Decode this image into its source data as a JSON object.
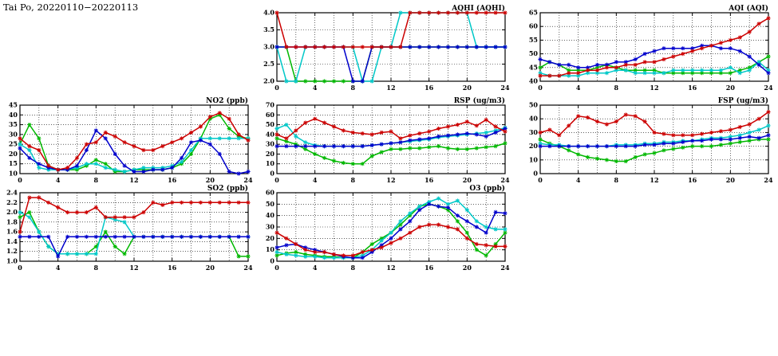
{
  "page": {
    "title": "Tai Po, 20220110−20220113"
  },
  "colors": {
    "red": "#cc0000",
    "blue": "#0000cc",
    "green": "#00b800",
    "cyan": "#00c8c8"
  },
  "chart_data": [
    {
      "id": "aqhi",
      "title": "AQHI (AQHI)",
      "type": "line",
      "xlim": [
        0,
        24
      ],
      "xticks": [
        0,
        4,
        8,
        12,
        16,
        20,
        24
      ],
      "xgrid": 2,
      "x0": 0,
      "dx": 1,
      "ylim": [
        2.0,
        4.0
      ],
      "yticks": [
        2.0,
        2.5,
        3.0,
        3.5,
        4.0
      ],
      "ydp": 1,
      "series": [
        {
          "name": "green",
          "color": "#00b800",
          "values": [
            3,
            3,
            2,
            2,
            2,
            2,
            2,
            2,
            2,
            2,
            3,
            3,
            3,
            3,
            3,
            3,
            3,
            3,
            3,
            3,
            3,
            3,
            3,
            3,
            3
          ]
        },
        {
          "name": "cyan",
          "color": "#00c8c8",
          "values": [
            3,
            2,
            2,
            3,
            3,
            3,
            3,
            3,
            3,
            2,
            2,
            3,
            3,
            4,
            4,
            4,
            4,
            4,
            4,
            4,
            4,
            3,
            3,
            3,
            3
          ]
        },
        {
          "name": "blue",
          "color": "#0000cc",
          "values": [
            3,
            3,
            3,
            3,
            3,
            3,
            3,
            3,
            2,
            2,
            3,
            3,
            3,
            3,
            3,
            3,
            3,
            3,
            3,
            3,
            3,
            3,
            3,
            3,
            3
          ]
        },
        {
          "name": "red",
          "color": "#cc0000",
          "values": [
            4,
            3,
            3,
            3,
            3,
            3,
            3,
            3,
            3,
            3,
            3,
            3,
            3,
            3,
            4,
            4,
            4,
            4,
            4,
            4,
            4,
            4,
            4,
            4,
            4
          ]
        }
      ]
    },
    {
      "id": "aqi",
      "title": "AQI (AQI)",
      "type": "line",
      "xlim": [
        0,
        24
      ],
      "xticks": [
        0,
        4,
        8,
        12,
        16,
        20,
        24
      ],
      "xgrid": 2,
      "x0": 0,
      "dx": 1,
      "ylim": [
        40,
        65
      ],
      "yticks": [
        40,
        45,
        50,
        55,
        60,
        65
      ],
      "ydp": 0,
      "series": [
        {
          "name": "green",
          "color": "#00b800",
          "values": [
            45,
            47,
            46,
            44,
            44,
            44,
            45,
            46,
            45,
            44,
            44,
            44,
            44,
            43,
            43,
            43,
            43,
            43,
            43,
            43,
            43,
            44,
            45,
            47,
            49
          ]
        },
        {
          "name": "cyan",
          "color": "#00c8c8",
          "values": [
            43,
            42,
            42,
            42,
            42,
            43,
            43,
            43,
            44,
            44,
            43,
            43,
            43,
            43,
            44,
            44,
            44,
            44,
            44,
            44,
            45,
            43,
            44,
            47,
            44
          ]
        },
        {
          "name": "blue",
          "color": "#0000cc",
          "values": [
            48,
            47,
            46,
            46,
            45,
            45,
            46,
            46,
            47,
            47,
            48,
            50,
            51,
            52,
            52,
            52,
            52,
            53,
            53,
            52,
            52,
            51,
            49,
            46,
            43
          ]
        },
        {
          "name": "red",
          "color": "#cc0000",
          "values": [
            42,
            42,
            42,
            43,
            43,
            44,
            44,
            45,
            45,
            46,
            46,
            47,
            47,
            48,
            49,
            50,
            51,
            52,
            53,
            54,
            55,
            56,
            58,
            61,
            63
          ]
        }
      ]
    },
    {
      "id": "no2",
      "title": "NO2 (ppb)",
      "type": "line",
      "xlim": [
        0,
        24
      ],
      "xticks": [
        0,
        4,
        8,
        12,
        16,
        20,
        24
      ],
      "xgrid": 2,
      "x0": 0,
      "dx": 1,
      "ylim": [
        10,
        45
      ],
      "yticks": [
        10,
        15,
        20,
        25,
        30,
        35,
        40,
        45
      ],
      "ydp": 0,
      "series": [
        {
          "name": "green",
          "color": "#00b800",
          "values": [
            25,
            35,
            28,
            14,
            12,
            12,
            12,
            14,
            17,
            15,
            11,
            11,
            12,
            12,
            12,
            12,
            13,
            15,
            20,
            28,
            38,
            40,
            33,
            29,
            28
          ]
        },
        {
          "name": "cyan",
          "color": "#00c8c8",
          "values": [
            25,
            22,
            13,
            12,
            12,
            12,
            13,
            15,
            15,
            13,
            12,
            11,
            12,
            13,
            13,
            13,
            14,
            16,
            22,
            28,
            28,
            28,
            28,
            28,
            28
          ]
        },
        {
          "name": "blue",
          "color": "#0000cc",
          "values": [
            23,
            18,
            15,
            13,
            12,
            12,
            14,
            22,
            32,
            28,
            20,
            14,
            11,
            11,
            12,
            12,
            13,
            18,
            26,
            27,
            25,
            20,
            11,
            10,
            11
          ]
        },
        {
          "name": "red",
          "color": "#cc0000",
          "values": [
            28,
            24,
            22,
            14,
            12,
            13,
            18,
            25,
            26,
            31,
            29,
            26,
            24,
            22,
            22,
            24,
            26,
            28,
            31,
            34,
            39,
            41,
            38,
            30,
            27
          ]
        }
      ]
    },
    {
      "id": "rsp",
      "title": "RSP (ug/m3)",
      "type": "line",
      "xlim": [
        0,
        24
      ],
      "xticks": [
        0,
        4,
        8,
        12,
        16,
        20,
        24
      ],
      "xgrid": 2,
      "x0": 0,
      "dx": 1,
      "ylim": [
        0,
        70
      ],
      "yticks": [
        0,
        10,
        20,
        30,
        40,
        50,
        60,
        70
      ],
      "ydp": 0,
      "series": [
        {
          "name": "green",
          "color": "#00b800",
          "values": [
            36,
            33,
            30,
            25,
            20,
            16,
            13,
            11,
            10,
            10,
            18,
            22,
            25,
            25,
            26,
            26,
            27,
            28,
            26,
            25,
            25,
            26,
            27,
            28,
            31
          ]
        },
        {
          "name": "cyan",
          "color": "#00c8c8",
          "values": [
            46,
            50,
            38,
            32,
            29,
            28,
            28,
            28,
            28,
            28,
            29,
            30,
            31,
            32,
            33,
            34,
            35,
            37,
            38,
            39,
            40,
            41,
            42,
            44,
            47
          ]
        },
        {
          "name": "blue",
          "color": "#0000cc",
          "values": [
            28,
            28,
            28,
            28,
            28,
            28,
            28,
            28,
            28,
            28,
            29,
            30,
            31,
            32,
            34,
            35,
            36,
            38,
            39,
            40,
            41,
            40,
            38,
            42,
            46
          ]
        },
        {
          "name": "red",
          "color": "#cc0000",
          "values": [
            40,
            36,
            44,
            52,
            56,
            52,
            48,
            44,
            42,
            41,
            40,
            42,
            43,
            36,
            39,
            41,
            43,
            46,
            48,
            50,
            53,
            49,
            55,
            48,
            43
          ]
        }
      ]
    },
    {
      "id": "fsp",
      "title": "FSP (ug/m3)",
      "type": "line",
      "xlim": [
        0,
        24
      ],
      "xticks": [
        0,
        4,
        8,
        12,
        16,
        20,
        24
      ],
      "xgrid": 2,
      "x0": 0,
      "dx": 1,
      "ylim": [
        0,
        50
      ],
      "yticks": [
        0,
        10,
        20,
        30,
        40,
        50
      ],
      "ydp": 0,
      "series": [
        {
          "name": "green",
          "color": "#00b800",
          "values": [
            25,
            22,
            20,
            17,
            14,
            12,
            11,
            10,
            9,
            9,
            12,
            14,
            15,
            17,
            18,
            19,
            20,
            20,
            20,
            21,
            22,
            23,
            24,
            25,
            25
          ]
        },
        {
          "name": "cyan",
          "color": "#00c8c8",
          "values": [
            22,
            21,
            21,
            20,
            20,
            20,
            20,
            20,
            21,
            21,
            21,
            22,
            22,
            23,
            23,
            24,
            24,
            25,
            26,
            26,
            27,
            28,
            30,
            32,
            35
          ]
        },
        {
          "name": "blue",
          "color": "#0000cc",
          "values": [
            20,
            20,
            20,
            20,
            20,
            20,
            20,
            20,
            20,
            20,
            20,
            21,
            21,
            22,
            22,
            23,
            24,
            24,
            25,
            25,
            25,
            26,
            27,
            26,
            28
          ]
        },
        {
          "name": "red",
          "color": "#cc0000",
          "values": [
            30,
            32,
            28,
            35,
            42,
            41,
            38,
            36,
            38,
            43,
            42,
            38,
            30,
            29,
            28,
            28,
            28,
            29,
            30,
            31,
            32,
            34,
            36,
            40,
            45
          ]
        }
      ]
    },
    {
      "id": "so2",
      "title": "SO2 (ppb)",
      "type": "line",
      "xlim": [
        0,
        24
      ],
      "xticks": [
        0,
        4,
        8,
        12,
        16,
        20,
        24
      ],
      "xgrid": 2,
      "x0": 0,
      "dx": 1,
      "ylim": [
        1.0,
        2.4
      ],
      "yticks": [
        1.0,
        1.2,
        1.4,
        1.6,
        1.8,
        2.0,
        2.2,
        2.4
      ],
      "ydp": 1,
      "series": [
        {
          "name": "green",
          "color": "#00b800",
          "values": [
            1.9,
            2.0,
            1.6,
            1.3,
            1.15,
            1.15,
            1.15,
            1.15,
            1.3,
            1.6,
            1.3,
            1.15,
            1.5,
            1.5,
            1.5,
            1.5,
            1.5,
            1.5,
            1.5,
            1.5,
            1.5,
            1.5,
            1.5,
            1.1,
            1.1
          ]
        },
        {
          "name": "cyan",
          "color": "#00c8c8",
          "values": [
            2.0,
            1.9,
            1.6,
            1.3,
            1.15,
            1.15,
            1.15,
            1.15,
            1.15,
            1.9,
            1.85,
            1.8,
            1.5,
            1.5,
            1.5,
            1.5,
            1.5,
            1.5,
            1.5,
            1.5,
            1.5,
            1.5,
            1.5,
            1.5,
            1.5
          ]
        },
        {
          "name": "blue",
          "color": "#0000cc",
          "values": [
            1.5,
            1.5,
            1.5,
            1.5,
            1.1,
            1.5,
            1.5,
            1.5,
            1.5,
            1.5,
            1.5,
            1.5,
            1.5,
            1.5,
            1.5,
            1.5,
            1.5,
            1.5,
            1.5,
            1.5,
            1.5,
            1.5,
            1.5,
            1.5,
            1.5
          ]
        },
        {
          "name": "red",
          "color": "#cc0000",
          "values": [
            1.6,
            2.3,
            2.3,
            2.2,
            2.1,
            2.0,
            2.0,
            2.0,
            2.1,
            1.9,
            1.9,
            1.9,
            1.9,
            2.0,
            2.2,
            2.15,
            2.2,
            2.2,
            2.2,
            2.2,
            2.2,
            2.2,
            2.2,
            2.2,
            2.2
          ]
        }
      ]
    },
    {
      "id": "o3",
      "title": "O3 (ppb)",
      "type": "line",
      "xlim": [
        0,
        24
      ],
      "xticks": [
        0,
        4,
        8,
        12,
        16,
        20,
        24
      ],
      "xgrid": 2,
      "x0": 0,
      "dx": 1,
      "ylim": [
        0,
        60
      ],
      "yticks": [
        0,
        10,
        20,
        30,
        40,
        50,
        60
      ],
      "ydp": 0,
      "series": [
        {
          "name": "green",
          "color": "#00b800",
          "values": [
            5,
            7,
            8,
            6,
            5,
            4,
            4,
            3,
            3,
            8,
            15,
            20,
            25,
            32,
            40,
            48,
            50,
            48,
            45,
            35,
            25,
            10,
            5,
            15,
            25
          ]
        },
        {
          "name": "cyan",
          "color": "#00c8c8",
          "values": [
            8,
            6,
            5,
            4,
            4,
            3,
            3,
            3,
            3,
            5,
            10,
            18,
            25,
            35,
            42,
            48,
            52,
            55,
            50,
            53,
            45,
            35,
            30,
            28,
            28
          ]
        },
        {
          "name": "blue",
          "color": "#0000cc",
          "values": [
            12,
            14,
            15,
            12,
            10,
            8,
            6,
            4,
            3,
            3,
            8,
            14,
            20,
            28,
            35,
            45,
            50,
            48,
            47,
            40,
            35,
            30,
            25,
            43,
            42
          ]
        },
        {
          "name": "red",
          "color": "#cc0000",
          "values": [
            25,
            20,
            15,
            10,
            8,
            8,
            6,
            5,
            5,
            8,
            10,
            12,
            16,
            20,
            25,
            30,
            32,
            32,
            30,
            28,
            20,
            15,
            14,
            13,
            13
          ]
        }
      ]
    }
  ]
}
